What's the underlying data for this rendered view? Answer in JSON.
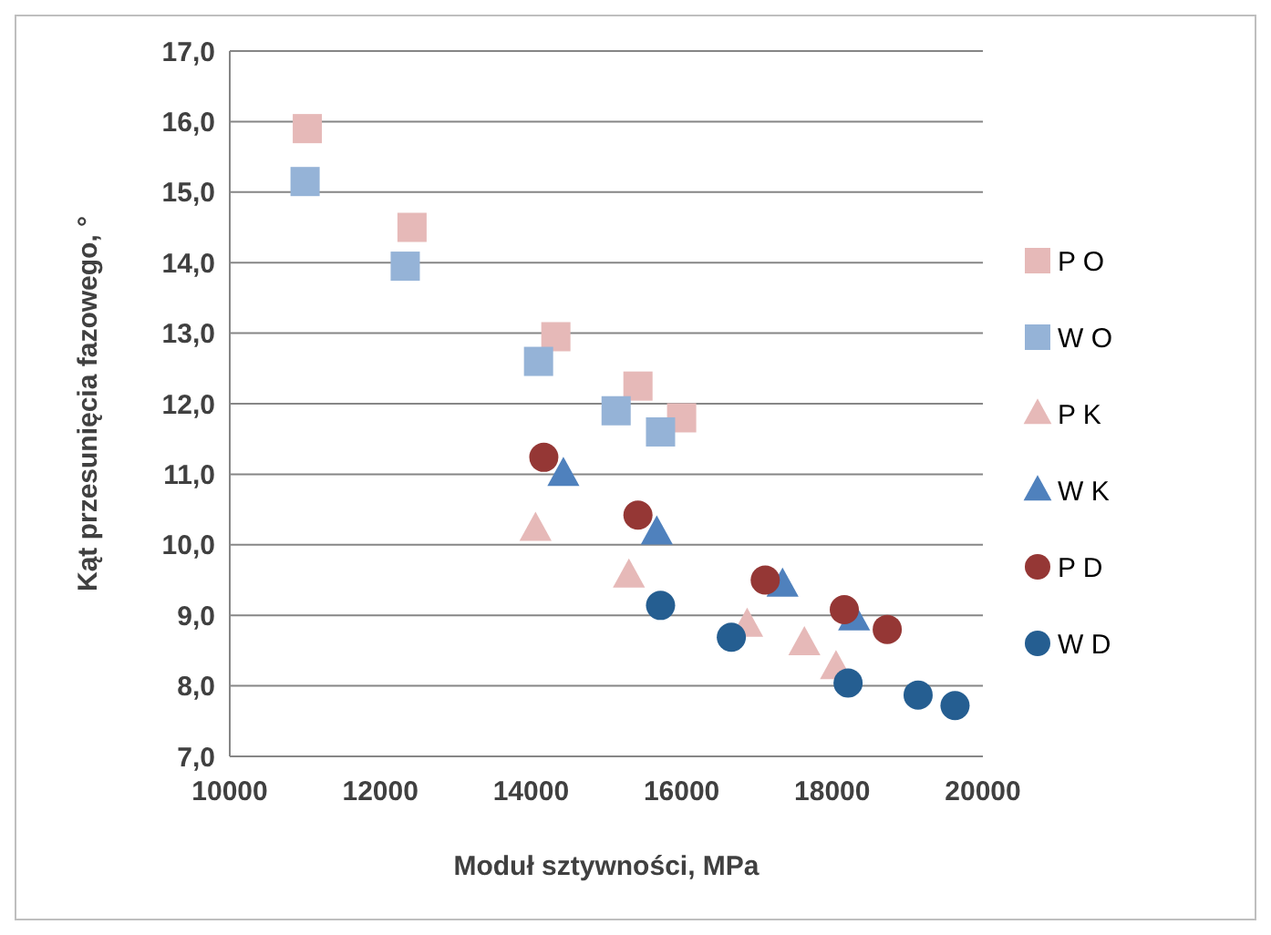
{
  "chart_data": {
    "type": "scatter",
    "xlabel": "Moduł sztywności, MPa",
    "ylabel": "Kąt przesunięcia fazowego, °",
    "xlim": [
      10000,
      20000
    ],
    "xticks": [
      10000,
      12000,
      14000,
      16000,
      18000,
      20000
    ],
    "ylim": [
      7,
      17
    ],
    "yticks": [
      {
        "value": 7,
        "label": "7,0"
      },
      {
        "value": 8,
        "label": "8,0"
      },
      {
        "value": 9,
        "label": "9,0"
      },
      {
        "value": 10,
        "label": "10,0"
      },
      {
        "value": 11,
        "label": "11,0"
      },
      {
        "value": 12,
        "label": "12,0"
      },
      {
        "value": 13,
        "label": "13,0"
      },
      {
        "value": 14,
        "label": "14,0"
      },
      {
        "value": 15,
        "label": "15,0"
      },
      {
        "value": 16,
        "label": "16,0"
      },
      {
        "value": 17,
        "label": "17,0"
      }
    ],
    "grid": "y",
    "legend": "right",
    "series": [
      {
        "name": "P O",
        "color": "#e6b9b8",
        "marker": "square",
        "x": [
          11030,
          12420,
          14330,
          15420,
          16000
        ],
        "values": [
          15.9,
          14.5,
          12.95,
          12.25,
          11.8
        ]
      },
      {
        "name": "W O",
        "color": "#95b3d7",
        "marker": "square",
        "x": [
          11000,
          12330,
          14100,
          15130,
          15720
        ],
        "values": [
          15.15,
          13.95,
          12.6,
          11.9,
          11.6
        ]
      },
      {
        "name": "P K",
        "color": "#e6b9b8",
        "marker": "triangle",
        "x": [
          14060,
          15300,
          16870,
          17630,
          18050
        ],
        "values": [
          10.22,
          9.56,
          8.86,
          8.6,
          8.26
        ]
      },
      {
        "name": "W K",
        "color": "#4f81bd",
        "marker": "triangle",
        "x": [
          14430,
          15670,
          17340,
          18290
        ],
        "values": [
          11.0,
          10.17,
          9.43,
          8.95
        ]
      },
      {
        "name": "P D",
        "color": "#953735",
        "marker": "circle",
        "x": [
          14170,
          15420,
          17110,
          18160,
          18730
        ],
        "values": [
          11.24,
          10.42,
          9.5,
          9.08,
          8.8
        ]
      },
      {
        "name": "W D",
        "color": "#255e91",
        "marker": "circle",
        "x": [
          15720,
          16660,
          18210,
          19140,
          19630
        ],
        "values": [
          9.14,
          8.69,
          8.04,
          7.87,
          7.72
        ]
      }
    ]
  }
}
